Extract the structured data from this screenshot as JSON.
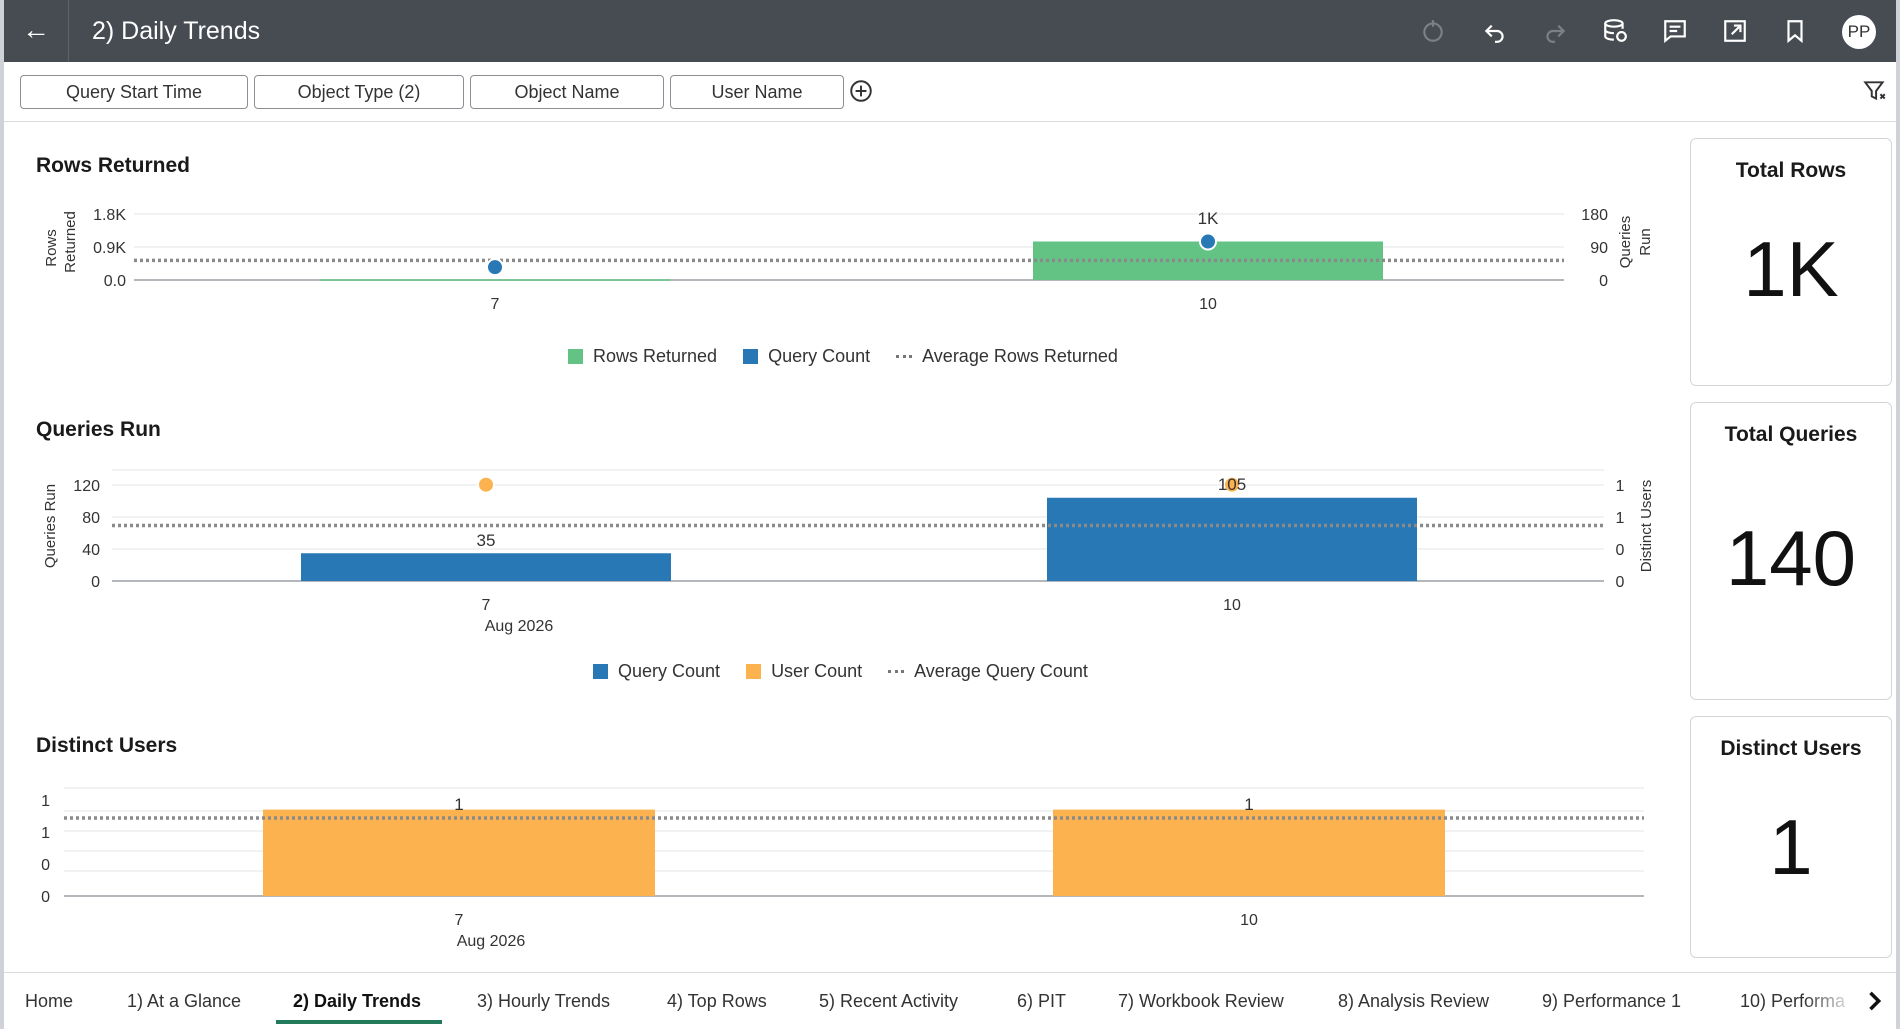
{
  "header": {
    "title": "2) Daily Trends",
    "user_initials": "PP",
    "icons": [
      "back-arrow-icon",
      "refresh-icon",
      "undo-icon",
      "redo-icon",
      "data-refresh-icon",
      "comment-icon",
      "export-icon",
      "bookmark-icon"
    ]
  },
  "filters": {
    "items": [
      "Query Start Time",
      "Object Type (2)",
      "Object Name",
      "User Name"
    ]
  },
  "colors": {
    "header_bg": "#474c52",
    "green": "#62c384",
    "blue": "#2878b5",
    "orange": "#fcb24f",
    "tab_active": "#227a5b"
  },
  "panels": {
    "rows_returned": {
      "title": "Rows Returned",
      "y_title": "Rows Returned",
      "y2_title": "Queries Run",
      "x_labels": [
        "7",
        "10"
      ],
      "left_ticks": [
        "1.8K",
        "0.9K",
        "0.0"
      ],
      "right_ticks": [
        "180",
        "90",
        "0"
      ],
      "bar_label_10": "1K",
      "legend": [
        "Rows Returned",
        "Query Count",
        "Average Rows Returned"
      ]
    },
    "queries_run": {
      "title": "Queries Run",
      "y_title": "Queries Run",
      "y2_title": "Distinct Users",
      "x_labels": [
        "7",
        "10"
      ],
      "x_sublabel": "Aug 2026",
      "left_ticks": [
        "120",
        "80",
        "40",
        "0"
      ],
      "right_ticks": [
        "1",
        "1",
        "0",
        "0"
      ],
      "bar_labels": [
        "35",
        "105"
      ],
      "legend": [
        "Query Count",
        "User Count",
        "Average Query Count"
      ]
    },
    "distinct_users": {
      "title": "Distinct Users",
      "x_labels": [
        "7",
        "10"
      ],
      "x_sublabel": "Aug 2026",
      "left_ticks": [
        "1",
        "1",
        "0",
        "0"
      ],
      "bar_labels": [
        "1",
        "1"
      ]
    }
  },
  "chart_data": [
    {
      "type": "bar",
      "title": "Rows Returned",
      "categories": [
        "7",
        "10"
      ],
      "series": [
        {
          "name": "Rows Returned",
          "type": "bar",
          "axis": "left",
          "values": [
            20,
            1050
          ]
        },
        {
          "name": "Query Count",
          "type": "scatter",
          "axis": "right",
          "values": [
            35,
            105
          ]
        },
        {
          "name": "Average Rows Returned",
          "type": "line",
          "axis": "left",
          "values": [
            535,
            535
          ]
        }
      ],
      "ylabel": "Rows Returned",
      "y2label": "Queries Run",
      "ylim": [
        0,
        1800
      ],
      "y2lim": [
        0,
        180
      ]
    },
    {
      "type": "bar",
      "title": "Queries Run",
      "categories": [
        "7",
        "10"
      ],
      "series": [
        {
          "name": "Query Count",
          "type": "bar",
          "axis": "left",
          "values": [
            35,
            105
          ]
        },
        {
          "name": "User Count",
          "type": "scatter",
          "axis": "right",
          "values": [
            1,
            1
          ]
        },
        {
          "name": "Average Query Count",
          "type": "line",
          "axis": "left",
          "values": [
            70,
            70
          ]
        }
      ],
      "ylabel": "Queries Run",
      "y2label": "Distinct Users",
      "ylim": [
        0,
        140
      ],
      "y2lim": [
        0,
        1.4
      ]
    },
    {
      "type": "bar",
      "title": "Distinct Users",
      "categories": [
        "7",
        "10"
      ],
      "series": [
        {
          "name": "",
          "type": "bar",
          "values": [
            1,
            1
          ]
        }
      ],
      "ylim": [
        0,
        1.25
      ]
    }
  ],
  "kpis": [
    {
      "title": "Total Rows",
      "value": "1K"
    },
    {
      "title": "Total Queries",
      "value": "140"
    },
    {
      "title": "Distinct Users",
      "value": "1"
    }
  ],
  "tabs": {
    "items": [
      "Home",
      "1) At a Glance",
      "2) Daily Trends",
      "3) Hourly Trends",
      "4) Top Rows",
      "5) Recent Activity",
      "6) PIT",
      "7) Workbook Review",
      "8) Analysis Review",
      "9) Performance 1",
      "10) Performa"
    ],
    "active_index": 2
  }
}
